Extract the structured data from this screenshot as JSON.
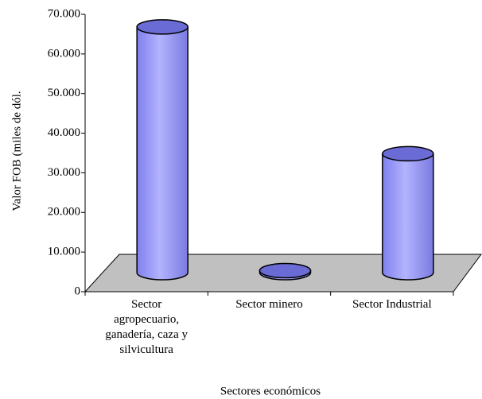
{
  "chart_data": {
    "type": "bar",
    "y_label": "Valor FOB (miles de dól.",
    "x_label": "Sectores económicos",
    "categories": [
      "Sector agropecuario, ganadería, caza y silvicultura",
      "Sector minero",
      "Sector Industrial"
    ],
    "values": [
      62000,
      500,
      30000
    ],
    "color": "#9999ff",
    "ylim": [
      0,
      70000
    ],
    "yticks": [
      0,
      {
        "value": 10000,
        "label": "10.000"
      },
      {
        "value": 20000,
        "label": "20.000"
      },
      {
        "value": 30000,
        "label": "30.000"
      },
      {
        "value": 40000,
        "label": "40.000"
      },
      {
        "value": 50000,
        "label": "50.000"
      },
      {
        "value": 60000,
        "label": "60.000"
      },
      {
        "value": 70000,
        "label": "70.000"
      }
    ]
  }
}
